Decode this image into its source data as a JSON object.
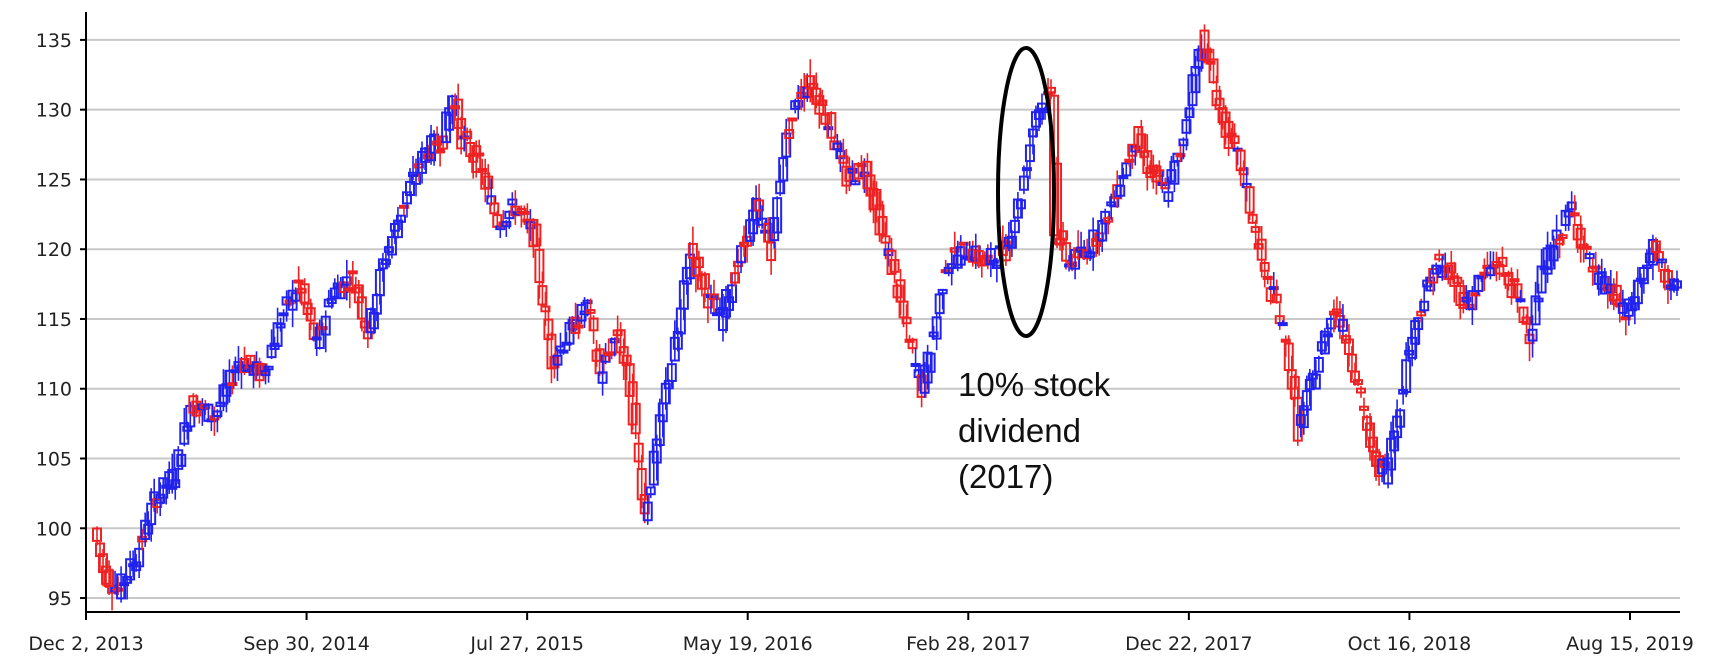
{
  "chart_data": {
    "type": "candlestick",
    "title": "",
    "xlabel": "",
    "ylabel": "",
    "ylim": [
      94,
      137
    ],
    "yticks": [
      95,
      100,
      105,
      110,
      115,
      120,
      125,
      130,
      135
    ],
    "xticks": [
      "Dec 2, 2013",
      "Sep 30, 2014",
      "Jul 27, 2015",
      "May 19, 2016",
      "Feb 28, 2017",
      "Dec 22, 2017",
      "Oct 16, 2018",
      "Aug 15, 2019"
    ],
    "grid": true,
    "colors": {
      "up": "#2222ee",
      "down": "#ee2222",
      "grid": "#c8c8c8",
      "axis": "#000000"
    },
    "anchors": [
      [
        0,
        100
      ],
      [
        3,
        97
      ],
      [
        8,
        95.5
      ],
      [
        14,
        98
      ],
      [
        20,
        102
      ],
      [
        27,
        104
      ],
      [
        32,
        109
      ],
      [
        40,
        108
      ],
      [
        48,
        112
      ],
      [
        56,
        111
      ],
      [
        62,
        115
      ],
      [
        68,
        117.5
      ],
      [
        74,
        113
      ],
      [
        79,
        117
      ],
      [
        86,
        118
      ],
      [
        91,
        114
      ],
      [
        96,
        119
      ],
      [
        104,
        124
      ],
      [
        110,
        127
      ],
      [
        116,
        128
      ],
      [
        119,
        131
      ],
      [
        122,
        128
      ],
      [
        128,
        126
      ],
      [
        134,
        122
      ],
      [
        140,
        123
      ],
      [
        146,
        121
      ],
      [
        152,
        112
      ],
      [
        158,
        114
      ],
      [
        164,
        116
      ],
      [
        168,
        111
      ],
      [
        174,
        114
      ],
      [
        178,
        110
      ],
      [
        183,
        101
      ],
      [
        187,
        106
      ],
      [
        190,
        110
      ],
      [
        194,
        114
      ],
      [
        198,
        120
      ],
      [
        203,
        117
      ],
      [
        208,
        115
      ],
      [
        214,
        119
      ],
      [
        220,
        123
      ],
      [
        225,
        120
      ],
      [
        229,
        127
      ],
      [
        234,
        131
      ],
      [
        238,
        132
      ],
      [
        244,
        129
      ],
      [
        250,
        125
      ],
      [
        256,
        126
      ],
      [
        262,
        121
      ],
      [
        266,
        118
      ],
      [
        270,
        114
      ],
      [
        275,
        110
      ],
      [
        279,
        114
      ],
      [
        283,
        119
      ],
      [
        290,
        120
      ],
      [
        296,
        119
      ],
      [
        303,
        120
      ],
      [
        308,
        124
      ],
      [
        313,
        130
      ],
      [
        318,
        131
      ],
      [
        320,
        121
      ],
      [
        324,
        119
      ],
      [
        330,
        120
      ],
      [
        336,
        122
      ],
      [
        341,
        125
      ],
      [
        346,
        128
      ],
      [
        350,
        126
      ],
      [
        356,
        124
      ],
      [
        361,
        127
      ],
      [
        365,
        132
      ],
      [
        368,
        135
      ],
      [
        371,
        133
      ],
      [
        375,
        129
      ],
      [
        381,
        126
      ],
      [
        385,
        122
      ],
      [
        389,
        118
      ],
      [
        393,
        116
      ],
      [
        397,
        112
      ],
      [
        400,
        107
      ],
      [
        404,
        110
      ],
      [
        408,
        113
      ],
      [
        412,
        116
      ],
      [
        417,
        113
      ],
      [
        421,
        109
      ],
      [
        425,
        105
      ],
      [
        429,
        104
      ],
      [
        433,
        108
      ],
      [
        437,
        113
      ],
      [
        441,
        116
      ],
      [
        446,
        119
      ],
      [
        451,
        118
      ],
      [
        456,
        116
      ],
      [
        461,
        118
      ],
      [
        466,
        119
      ],
      [
        472,
        117
      ],
      [
        477,
        114
      ],
      [
        482,
        119
      ],
      [
        487,
        121
      ],
      [
        491,
        123
      ],
      [
        495,
        120
      ],
      [
        499,
        118
      ],
      [
        504,
        117
      ],
      [
        509,
        115
      ],
      [
        514,
        118
      ],
      [
        518,
        120
      ],
      [
        522,
        118
      ],
      [
        526,
        117
      ]
    ],
    "events": [
      {
        "label": "10% stock dividend",
        "year": "(2017)",
        "from": 131,
        "to": 118.5
      }
    ]
  }
}
